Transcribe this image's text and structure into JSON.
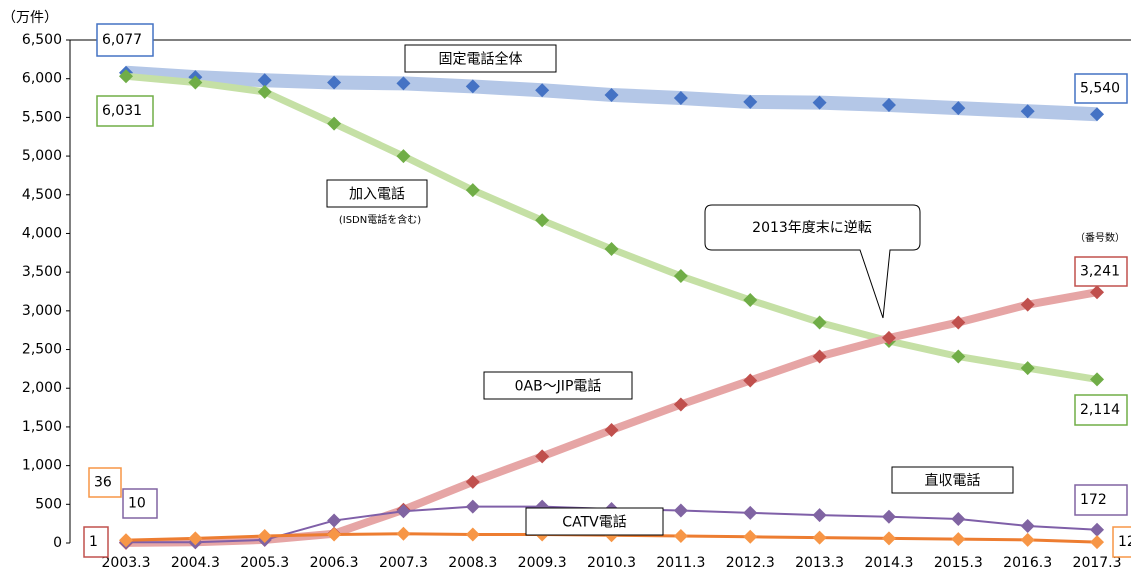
{
  "chart_data": {
    "type": "line",
    "unit_label": "（万件）",
    "categories": [
      "2003.3",
      "2004.3",
      "2005.3",
      "2006.3",
      "2007.3",
      "2008.3",
      "2009.3",
      "2010.3",
      "2011.3",
      "2012.3",
      "2013.3",
      "2014.3",
      "2015.3",
      "2016.3",
      "2017.3"
    ],
    "ylim": [
      0,
      6500
    ],
    "yticks": [
      0,
      500,
      {
        "value": 1000,
        "label": "1,000"
      },
      {
        "value": 1500,
        "label": "1,500"
      },
      {
        "value": 2000,
        "label": "2,000"
      },
      {
        "value": 2500,
        "label": "2,500"
      },
      {
        "value": 3000,
        "label": "3,000"
      },
      {
        "value": 3500,
        "label": "3,500"
      },
      {
        "value": 4000,
        "label": "4,000"
      },
      {
        "value": 4500,
        "label": "4,500"
      },
      {
        "value": 5000,
        "label": "5,000"
      },
      {
        "value": 5500,
        "label": "5,500"
      },
      {
        "value": 6000,
        "label": "6,000"
      },
      {
        "value": 6500,
        "label": "6,500"
      }
    ],
    "series": [
      {
        "name": "固定電話全体",
        "color": "#4472c4",
        "line_color": "#b4c7e7",
        "values": [
          6077,
          6020,
          5980,
          5950,
          5940,
          5900,
          5850,
          5790,
          5750,
          5700,
          5690,
          5660,
          5620,
          5580,
          5540
        ],
        "value_labels": [
          "6,077",
          null,
          null,
          null,
          null,
          null,
          null,
          null,
          null,
          null,
          null,
          null,
          null,
          null,
          "5,540"
        ]
      },
      {
        "name": "加入電話",
        "note": "(ISDN電話を含む)",
        "color": "#70ad47",
        "line_color": "#c5e0a5",
        "values": [
          6031,
          5950,
          5830,
          5420,
          5000,
          4560,
          4170,
          3800,
          3450,
          3140,
          2850,
          2610,
          2410,
          2260,
          2114
        ],
        "value_labels": [
          "6,031",
          null,
          null,
          null,
          null,
          null,
          null,
          null,
          null,
          null,
          null,
          null,
          null,
          null,
          "2,114"
        ]
      },
      {
        "name": "0AB～JIP電話",
        "note": "（番号数）",
        "color": "#c0504d",
        "line_color": "#e6a5a5",
        "values": [
          1,
          10,
          40,
          120,
          430,
          790,
          1120,
          1460,
          1790,
          2100,
          2410,
          2650,
          2850,
          3080,
          3241
        ],
        "value_labels": [
          "1",
          null,
          null,
          null,
          null,
          null,
          null,
          null,
          null,
          null,
          null,
          null,
          null,
          null,
          "3,241"
        ]
      },
      {
        "name": "直収電話",
        "color": "#8064a2",
        "line_color": "#7f5fa8",
        "values": [
          10,
          10,
          40,
          290,
          410,
          470,
          470,
          440,
          420,
          390,
          360,
          340,
          310,
          220,
          172
        ],
        "value_labels": [
          "10",
          null,
          null,
          null,
          null,
          null,
          null,
          null,
          null,
          null,
          null,
          null,
          null,
          null,
          "172"
        ]
      },
      {
        "name": "CATV電話",
        "color": "#f79646",
        "line_color": "#ed7d31",
        "values": [
          36,
          60,
          90,
          110,
          120,
          110,
          110,
          100,
          90,
          80,
          70,
          60,
          50,
          40,
          12
        ],
        "value_labels": [
          "36",
          null,
          null,
          null,
          null,
          null,
          null,
          null,
          null,
          null,
          null,
          null,
          null,
          null,
          "12"
        ]
      }
    ],
    "annotations": [
      "2013年度末に逆転"
    ]
  }
}
